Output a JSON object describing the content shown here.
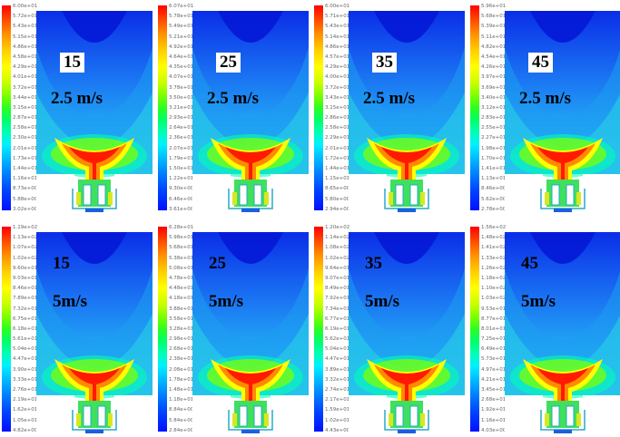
{
  "rows": [
    {
      "velocity": "2.5 m/s",
      "panels": [
        {
          "case": "15",
          "scale": [
            "6.00e+01",
            "5.72e+01",
            "5.43e+01",
            "5.15e+01",
            "4.86e+01",
            "4.58e+01",
            "4.29e+01",
            "4.01e+01",
            "3.72e+01",
            "3.44e+01",
            "3.15e+01",
            "2.87e+01",
            "2.58e+01",
            "2.30e+01",
            "2.01e+01",
            "1.73e+01",
            "1.44e+01",
            "1.16e+01",
            "8.73e+00",
            "5.88e+00",
            "3.02e+00"
          ]
        },
        {
          "case": "25",
          "scale": [
            "6.07e+01",
            "5.78e+01",
            "5.49e+01",
            "5.21e+01",
            "4.92e+01",
            "4.64e+01",
            "4.35e+01",
            "4.07e+01",
            "3.78e+01",
            "3.50e+01",
            "3.21e+01",
            "2.93e+01",
            "2.64e+01",
            "2.36e+01",
            "2.07e+01",
            "1.79e+01",
            "1.50e+01",
            "1.22e+01",
            "9.30e+00",
            "6.46e+00",
            "3.61e+00"
          ]
        },
        {
          "case": "35",
          "scale": [
            "6.00e+01",
            "5.71e+01",
            "5.43e+01",
            "5.14e+01",
            "4.86e+01",
            "4.57e+01",
            "4.29e+01",
            "4.00e+01",
            "3.72e+01",
            "3.43e+01",
            "3.15e+01",
            "2.86e+01",
            "2.58e+01",
            "2.29e+01",
            "2.01e+01",
            "1.72e+01",
            "1.44e+01",
            "1.15e+01",
            "8.65e+00",
            "5.80e+00",
            "2.94e+00"
          ]
        },
        {
          "case": "45",
          "scale": [
            "5.96e+01",
            "5.68e+01",
            "5.39e+01",
            "5.11e+01",
            "4.82e+01",
            "4.54e+01",
            "4.26e+01",
            "3.97e+01",
            "3.69e+01",
            "3.40e+01",
            "3.12e+01",
            "2.83e+01",
            "2.55e+01",
            "2.27e+01",
            "1.98e+01",
            "1.70e+01",
            "1.41e+01",
            "1.13e+01",
            "8.46e+00",
            "5.62e+00",
            "2.78e+00"
          ]
        }
      ]
    },
    {
      "velocity": "5m/s",
      "panels": [
        {
          "case": "15",
          "scale": [
            "1.19e+02",
            "1.13e+02",
            "1.07e+02",
            "1.02e+02",
            "9.60e+01",
            "9.03e+01",
            "8.46e+01",
            "7.89e+01",
            "7.32e+01",
            "6.75e+01",
            "6.18e+01",
            "5.61e+01",
            "5.04e+01",
            "4.47e+01",
            "3.90e+01",
            "3.33e+01",
            "2.76e+01",
            "2.19e+01",
            "1.62e+01",
            "1.05e+01",
            "4.82e+00"
          ]
        },
        {
          "case": "25",
          "scale": [
            "6.28e+01",
            "5.98e+01",
            "5.68e+01",
            "5.38e+01",
            "5.08e+01",
            "4.78e+01",
            "4.48e+01",
            "4.18e+01",
            "3.88e+01",
            "3.58e+01",
            "3.28e+01",
            "2.98e+01",
            "2.68e+01",
            "2.38e+01",
            "2.08e+01",
            "1.78e+01",
            "1.48e+01",
            "1.18e+01",
            "8.84e+00",
            "5.84e+00",
            "2.84e+00"
          ]
        },
        {
          "case": "35",
          "scale": [
            "1.20e+02",
            "1.14e+02",
            "1.08e+02",
            "1.02e+02",
            "9.64e+01",
            "9.07e+01",
            "8.49e+01",
            "7.92e+01",
            "7.34e+01",
            "6.77e+01",
            "6.19e+01",
            "5.62e+01",
            "5.04e+01",
            "4.47e+01",
            "3.89e+01",
            "3.32e+01",
            "2.74e+01",
            "2.17e+01",
            "1.59e+01",
            "1.02e+01",
            "4.43e+00"
          ]
        },
        {
          "case": "45",
          "scale": [
            "1.56e+02",
            "1.48e+02",
            "1.41e+02",
            "1.33e+02",
            "1.26e+02",
            "1.18e+02",
            "1.10e+02",
            "1.03e+02",
            "9.53e+01",
            "8.77e+01",
            "8.01e+01",
            "7.25e+01",
            "6.49e+01",
            "5.73e+01",
            "4.97e+01",
            "4.21e+01",
            "3.45e+01",
            "2.68e+01",
            "1.92e+01",
            "1.16e+01",
            "4.03e+00"
          ]
        }
      ]
    }
  ],
  "colors": {
    "scale_max": "#ff0000",
    "scale_mid": "#2bff20",
    "scale_min": "#0010ff",
    "background_field": "#1a7af0",
    "burner_outline": "#2aa8c8"
  }
}
